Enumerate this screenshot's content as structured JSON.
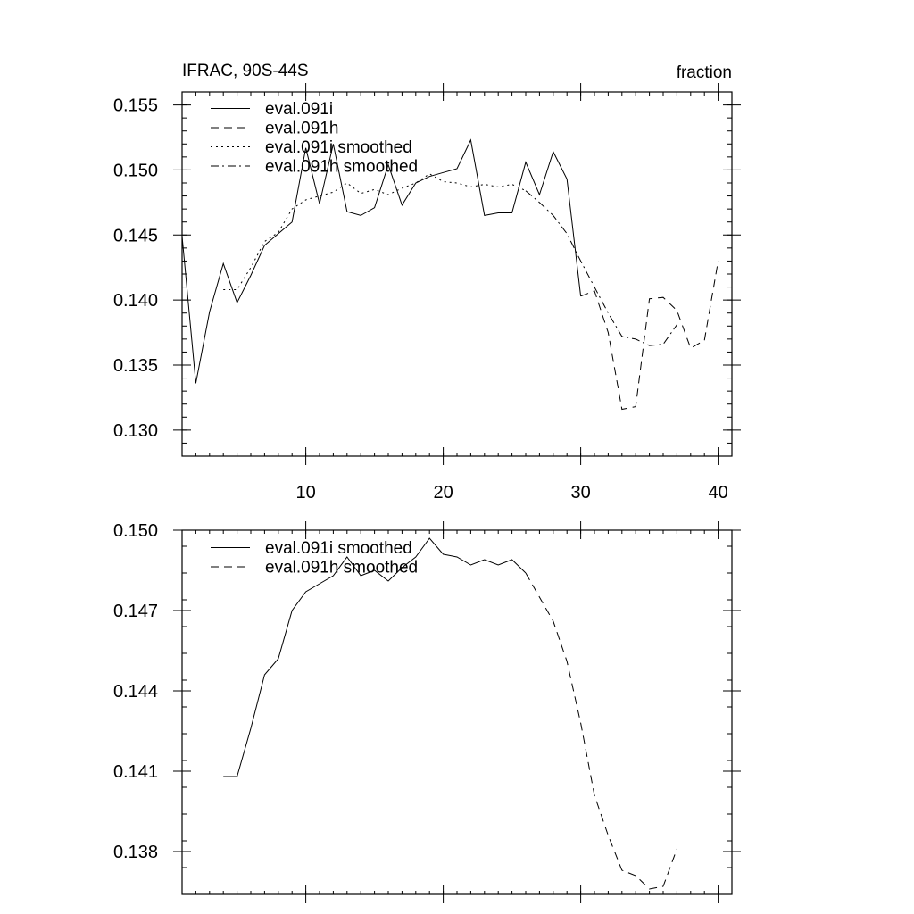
{
  "title_left": "IFRAC, 90S-44S",
  "title_right": "fraction",
  "chart_data": [
    {
      "type": "line",
      "title": "IFRAC, 90S-44S",
      "units": "fraction",
      "xlim": [
        1,
        41
      ],
      "ylim": [
        0.128,
        0.156
      ],
      "xticks": [
        10,
        20,
        30,
        40
      ],
      "xtick_labels": [
        "10",
        "20",
        "30",
        "40"
      ],
      "yticks": [
        0.13,
        0.135,
        0.14,
        0.145,
        0.15,
        0.155
      ],
      "ytick_labels": [
        "0.130",
        "0.135",
        "0.140",
        "0.145",
        "0.150",
        "0.155"
      ],
      "grid": false,
      "legend_position": "top-left",
      "series": [
        {
          "name": "eval.091i",
          "style": "solid",
          "x": [
            1,
            2,
            3,
            4,
            5,
            6,
            7,
            8,
            9,
            10,
            11,
            12,
            13,
            14,
            15,
            16,
            17,
            18,
            19,
            20,
            21,
            22,
            23,
            24,
            25,
            26,
            27,
            28,
            29,
            30
          ],
          "y": [
            0.1449,
            0.1336,
            0.1391,
            0.1428,
            0.1398,
            0.1419,
            0.1442,
            0.1451,
            0.146,
            0.1517,
            0.1474,
            0.152,
            0.1468,
            0.1465,
            0.1471,
            0.1504,
            0.1473,
            0.149,
            0.1495,
            0.1498,
            0.1501,
            0.1523,
            0.1465,
            0.1467,
            0.1467,
            0.1506,
            0.1481,
            0.1514,
            0.1493,
            0.1403
          ]
        },
        {
          "name": "eval.091h",
          "style": "dash",
          "x": [
            30,
            31,
            32,
            33,
            34,
            35,
            36,
            37,
            38,
            39,
            40
          ],
          "y": [
            0.1403,
            0.1407,
            0.1375,
            0.1316,
            0.1318,
            0.1401,
            0.1402,
            0.1392,
            0.1363,
            0.1369,
            0.143
          ]
        },
        {
          "name": "eval.091i smoothed",
          "style": "dot",
          "x": [
            4,
            5,
            6,
            7,
            8,
            9,
            10,
            11,
            12,
            13,
            14,
            15,
            16,
            17,
            18,
            19,
            20,
            21,
            22,
            23,
            24,
            25,
            26
          ],
          "y": [
            0.1408,
            0.1408,
            0.1425,
            0.1445,
            0.1452,
            0.147,
            0.1477,
            0.148,
            0.1483,
            0.149,
            0.1482,
            0.1485,
            0.1481,
            0.1486,
            0.149,
            0.1497,
            0.1491,
            0.149,
            0.1487,
            0.1489,
            0.1487,
            0.1489,
            0.1484
          ]
        },
        {
          "name": "eval.091h smoothed",
          "style": "dashdot",
          "x": [
            26,
            27,
            28,
            29,
            30,
            31,
            32,
            33,
            34,
            35,
            36,
            37
          ],
          "y": [
            0.1484,
            0.1475,
            0.1465,
            0.1451,
            0.143,
            0.141,
            0.139,
            0.1372,
            0.137,
            0.1365,
            0.1366,
            0.1381
          ]
        }
      ]
    },
    {
      "type": "line",
      "xlim": [
        1,
        41
      ],
      "ylim": [
        0.1364,
        0.15
      ],
      "xticks": [
        10,
        20,
        30,
        40
      ],
      "yticks": [
        0.138,
        0.141,
        0.144,
        0.147,
        0.15
      ],
      "ytick_labels": [
        "0.138",
        "0.141",
        "0.144",
        "0.147",
        "0.150"
      ],
      "grid": false,
      "legend_position": "top-left",
      "series": [
        {
          "name": "eval.091i smoothed",
          "style": "solid",
          "x": [
            4,
            5,
            6,
            7,
            8,
            9,
            10,
            11,
            12,
            13,
            14,
            15,
            16,
            17,
            18,
            19,
            20,
            21,
            22,
            23,
            24,
            25,
            26
          ],
          "y": [
            0.1408,
            0.1408,
            0.1426,
            0.1446,
            0.1452,
            0.147,
            0.1477,
            0.148,
            0.1483,
            0.149,
            0.1483,
            0.1485,
            0.1481,
            0.1486,
            0.149,
            0.1497,
            0.1491,
            0.149,
            0.1487,
            0.1489,
            0.1487,
            0.1489,
            0.1484
          ]
        },
        {
          "name": "eval.091h smoothed",
          "style": "dash",
          "x": [
            26,
            27,
            28,
            29,
            30,
            31,
            32,
            33,
            34,
            35,
            36,
            37
          ],
          "y": [
            0.1484,
            0.1475,
            0.1466,
            0.1451,
            0.1428,
            0.1401,
            0.1386,
            0.1373,
            0.1371,
            0.1366,
            0.1367,
            0.1381
          ]
        }
      ]
    }
  ]
}
